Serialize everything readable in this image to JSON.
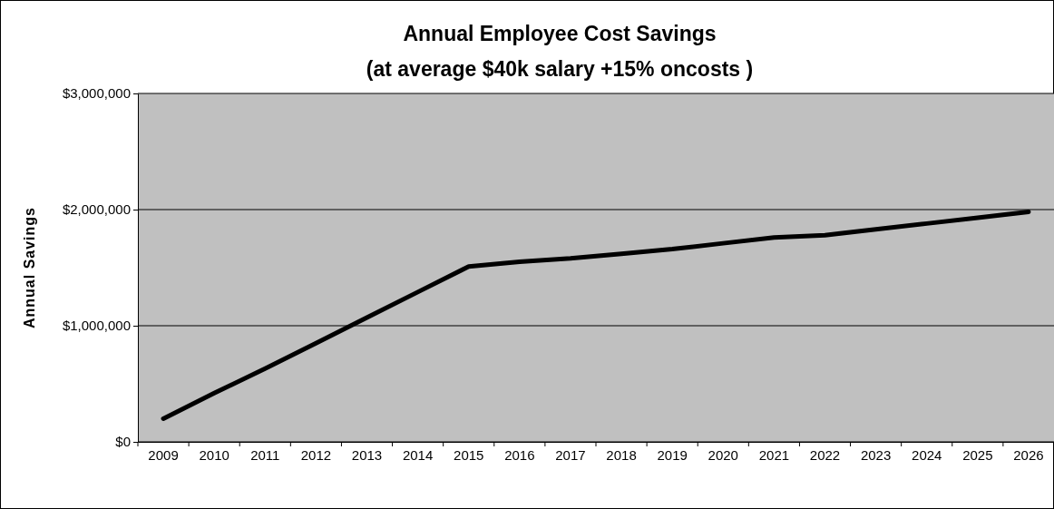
{
  "chart_data": {
    "type": "line",
    "title": "Annual Employee Cost Savings",
    "subtitle": "(at average $40k salary +15% oncosts )",
    "ylabel": "Annual Savings",
    "categories": [
      "2009",
      "2010",
      "2011",
      "2012",
      "2013",
      "2014",
      "2015",
      "2016",
      "2017",
      "2018",
      "2019",
      "2020",
      "2021",
      "2022",
      "2023",
      "2024",
      "2025",
      "2026"
    ],
    "series": [
      {
        "color": "#000000",
        "values": [
          200000,
          420000,
          630000,
          850000,
          1070000,
          1290000,
          1510000,
          1550000,
          1580000,
          1620000,
          1660000,
          1710000,
          1760000,
          1780000,
          1830000,
          1880000,
          1930000,
          1980000
        ]
      }
    ],
    "ylim": [
      0,
      3000000
    ],
    "yticks": [
      {
        "value": 0,
        "label": "$0"
      },
      {
        "value": 1000000,
        "label": "$1,000,000"
      },
      {
        "value": 2000000,
        "label": "$2,000,000"
      },
      {
        "value": 3000000,
        "label": "$3,000,000"
      }
    ],
    "grid": "y",
    "marker": "none",
    "line_style": "solid"
  }
}
